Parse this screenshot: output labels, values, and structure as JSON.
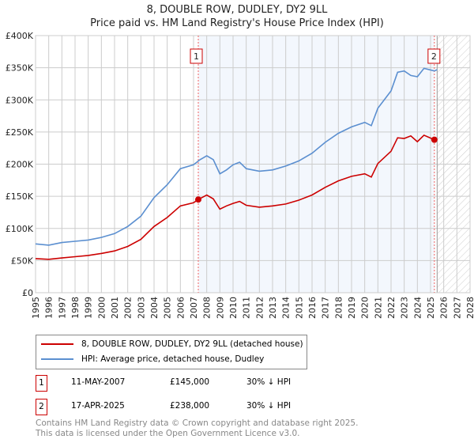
{
  "chart_data": {
    "type": "line",
    "title": "8, DOUBLE ROW, DUDLEY, DY2 9LL",
    "subtitle": "Price paid vs. HM Land Registry's House Price Index (HPI)",
    "xlim": [
      1995,
      2028
    ],
    "ylim": [
      0,
      400000
    ],
    "x_ticks": [
      1995,
      1996,
      1997,
      1998,
      1999,
      2000,
      2001,
      2002,
      2003,
      2004,
      2005,
      2006,
      2007,
      2008,
      2009,
      2010,
      2011,
      2012,
      2013,
      2014,
      2015,
      2016,
      2017,
      2018,
      2019,
      2020,
      2021,
      2022,
      2023,
      2024,
      2025,
      2026,
      2027,
      2028
    ],
    "y_ticks": [
      {
        "v": 0,
        "label": "£0"
      },
      {
        "v": 50000,
        "label": "£50K"
      },
      {
        "v": 100000,
        "label": "£100K"
      },
      {
        "v": 150000,
        "label": "£150K"
      },
      {
        "v": 200000,
        "label": "£200K"
      },
      {
        "v": 250000,
        "label": "£250K"
      },
      {
        "v": 300000,
        "label": "£300K"
      },
      {
        "v": 350000,
        "label": "£350K"
      },
      {
        "v": 400000,
        "label": "£400K"
      }
    ],
    "grid": true,
    "shaded_range": [
      2007.36,
      2025.29
    ],
    "hatched_from": 2025.5,
    "series": [
      {
        "name": "8, DOUBLE ROW, DUDLEY, DY2 9LL (detached house)",
        "color": "#cc0000",
        "x": [
          1995,
          1996,
          1997,
          1998,
          1999,
          2000,
          2001,
          2002,
          2003,
          2004,
          2005,
          2006,
          2007,
          2007.36,
          2008,
          2008.5,
          2009,
          2009.5,
          2010,
          2010.5,
          2011,
          2012,
          2013,
          2014,
          2015,
          2016,
          2017,
          2018,
          2019,
          2020,
          2020.5,
          2021,
          2022,
          2022.5,
          2023,
          2023.5,
          2024,
          2024.5,
          2025.29
        ],
        "y": [
          53000,
          52000,
          54000,
          56000,
          58000,
          61000,
          65000,
          72000,
          83000,
          103000,
          117000,
          135000,
          140000,
          145000,
          152000,
          146000,
          130000,
          135000,
          139000,
          142000,
          136000,
          133000,
          135000,
          138000,
          144000,
          152000,
          164000,
          174000,
          181000,
          185000,
          180000,
          201000,
          220000,
          241000,
          240000,
          244000,
          235000,
          245000,
          238000
        ]
      },
      {
        "name": "HPI: Average price, detached house, Dudley",
        "color": "#5b8fd0",
        "x": [
          1995,
          1996,
          1997,
          1998,
          1999,
          2000,
          2001,
          2002,
          2003,
          2004,
          2005,
          2006,
          2007,
          2007.5,
          2008,
          2008.5,
          2009,
          2009.5,
          2010,
          2010.5,
          2011,
          2012,
          2013,
          2014,
          2015,
          2016,
          2017,
          2018,
          2019,
          2020,
          2020.5,
          2021,
          2022,
          2022.5,
          2023,
          2023.5,
          2024,
          2024.5,
          2025.29,
          2025.5
        ],
        "y": [
          76000,
          74000,
          78000,
          80000,
          82000,
          86000,
          92000,
          103000,
          119000,
          148000,
          168000,
          193000,
          199000,
          207000,
          213000,
          207000,
          185000,
          191000,
          199000,
          203000,
          193000,
          189000,
          191000,
          197000,
          205000,
          217000,
          234000,
          248000,
          258000,
          265000,
          260000,
          287000,
          314000,
          343000,
          345000,
          338000,
          336000,
          349000,
          345000,
          347000
        ]
      }
    ],
    "annotations": [
      {
        "label": "1",
        "x": 2007.36,
        "y": 145000
      },
      {
        "label": "2",
        "x": 2025.29,
        "y": 238000
      }
    ]
  },
  "legend": {
    "items": [
      "8, DOUBLE ROW, DUDLEY, DY2 9LL (detached house)",
      "HPI: Average price, detached house, Dudley"
    ]
  },
  "transactions": [
    {
      "num": "1",
      "date": "11-MAY-2007",
      "price": "£145,000",
      "hpi": "30% ↓ HPI"
    },
    {
      "num": "2",
      "date": "17-APR-2025",
      "price": "£238,000",
      "hpi": "30% ↓ HPI"
    }
  ],
  "footer": {
    "line1": "Contains HM Land Registry data © Crown copyright and database right 2025.",
    "line2": "This data is licensed under the Open Government Licence v3.0."
  }
}
